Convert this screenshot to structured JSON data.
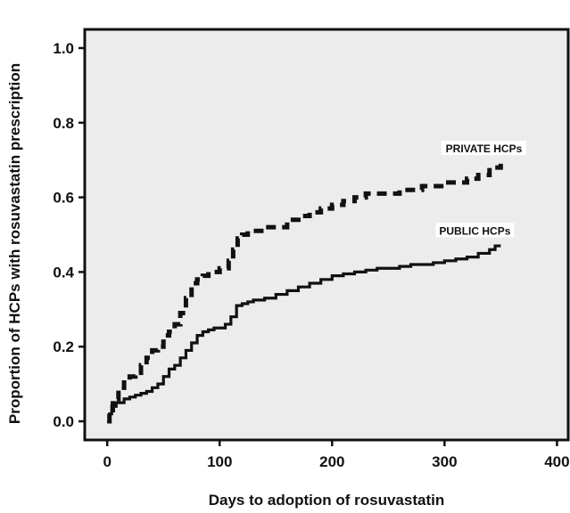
{
  "chart_data": {
    "type": "line",
    "title": "",
    "xlabel": "Days to adoption of rosuvastatin",
    "ylabel": "Proportion of HCPs with rosuvastatin prescription",
    "xlim": [
      -20,
      410
    ],
    "ylim": [
      -0.05,
      1.05
    ],
    "xticks": [
      0,
      100,
      200,
      300,
      400
    ],
    "yticks": [
      0.0,
      0.2,
      0.4,
      0.6,
      0.8,
      1.0
    ],
    "xtick_labels": [
      "0",
      "100",
      "200",
      "300",
      "400"
    ],
    "ytick_labels": [
      "0.0",
      "0.2",
      "0.4",
      "0.6",
      "0.8",
      "1.0"
    ],
    "grid": false,
    "background_color": "#ececec",
    "series": [
      {
        "name": "PRIVATE HCPs",
        "line_style": "dashed",
        "color": "#111111",
        "x": [
          0,
          2,
          5,
          10,
          15,
          20,
          25,
          30,
          35,
          40,
          45,
          50,
          55,
          60,
          65,
          70,
          75,
          80,
          85,
          90,
          95,
          100,
          105,
          108,
          112,
          116,
          120,
          125,
          130,
          140,
          150,
          160,
          170,
          180,
          190,
          200,
          210,
          220,
          230,
          240,
          250,
          260,
          270,
          280,
          290,
          300,
          310,
          320,
          330,
          340,
          345,
          350
        ],
        "y": [
          0.0,
          0.03,
          0.06,
          0.09,
          0.11,
          0.12,
          0.13,
          0.15,
          0.17,
          0.19,
          0.2,
          0.23,
          0.24,
          0.26,
          0.29,
          0.33,
          0.37,
          0.38,
          0.39,
          0.4,
          0.4,
          0.41,
          0.41,
          0.43,
          0.46,
          0.49,
          0.5,
          0.51,
          0.51,
          0.52,
          0.52,
          0.54,
          0.55,
          0.56,
          0.57,
          0.58,
          0.59,
          0.6,
          0.61,
          0.61,
          0.61,
          0.62,
          0.62,
          0.63,
          0.63,
          0.64,
          0.64,
          0.65,
          0.66,
          0.68,
          0.68,
          0.69
        ]
      },
      {
        "name": "PUBLIC HCPs",
        "line_style": "solid",
        "color": "#111111",
        "x": [
          0,
          2,
          4,
          8,
          15,
          20,
          25,
          30,
          35,
          40,
          45,
          50,
          55,
          60,
          65,
          70,
          75,
          80,
          85,
          90,
          95,
          100,
          105,
          110,
          115,
          120,
          125,
          130,
          140,
          150,
          160,
          170,
          180,
          190,
          200,
          210,
          220,
          230,
          240,
          250,
          260,
          270,
          280,
          290,
          300,
          310,
          320,
          330,
          340,
          345,
          350
        ],
        "y": [
          0.0,
          0.02,
          0.04,
          0.05,
          0.06,
          0.065,
          0.07,
          0.075,
          0.08,
          0.09,
          0.1,
          0.12,
          0.14,
          0.15,
          0.17,
          0.19,
          0.21,
          0.23,
          0.24,
          0.245,
          0.25,
          0.25,
          0.26,
          0.28,
          0.31,
          0.315,
          0.32,
          0.325,
          0.33,
          0.34,
          0.35,
          0.36,
          0.37,
          0.38,
          0.39,
          0.395,
          0.4,
          0.405,
          0.41,
          0.41,
          0.415,
          0.42,
          0.42,
          0.425,
          0.43,
          0.435,
          0.44,
          0.45,
          0.46,
          0.47,
          0.47
        ]
      }
    ],
    "annotations": [
      {
        "text": "PRIVATE HCPs",
        "x": 335,
        "y": 0.73
      },
      {
        "text": "PUBLIC HCPs",
        "x": 327,
        "y": 0.51
      }
    ]
  }
}
